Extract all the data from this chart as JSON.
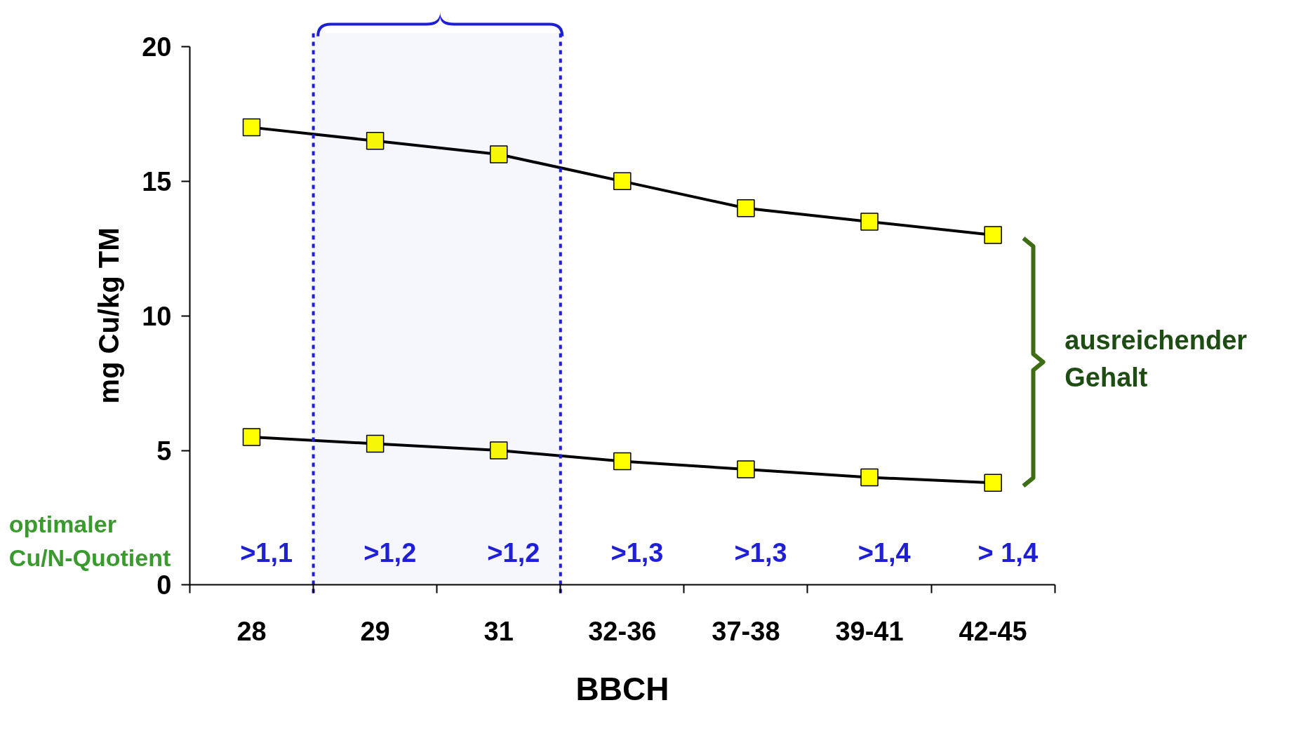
{
  "chart_data": {
    "type": "line",
    "xlabel": "BBCH",
    "ylabel": "mg Cu/kg TM",
    "categories": [
      "28",
      "29",
      "31",
      "32-36",
      "37-38",
      "39-41",
      "42-45"
    ],
    "series": [
      {
        "color": "#000000",
        "values": [
          17,
          16.5,
          16,
          15,
          14,
          13.5,
          13
        ]
      },
      {
        "color": "#000000",
        "values": [
          5.5,
          5.25,
          5,
          4.6,
          4.3,
          4,
          3.8
        ]
      }
    ],
    "bands": [
      {
        "axis": "x",
        "from": "29",
        "to": "31",
        "color": "#1f1fd6"
      }
    ],
    "ylim": [
      0,
      20
    ],
    "yticks": [
      0,
      5,
      10,
      15,
      20
    ],
    "grid": false,
    "marker": "square",
    "line_style": "solid",
    "annotations": [
      "optimaler\nCu/N-Quotient",
      ">1,1",
      ">1,2",
      ">1,2",
      ">1,3",
      ">1,3",
      ">1,4",
      "> 1,4",
      "ausreichender\nGehalt"
    ]
  }
}
